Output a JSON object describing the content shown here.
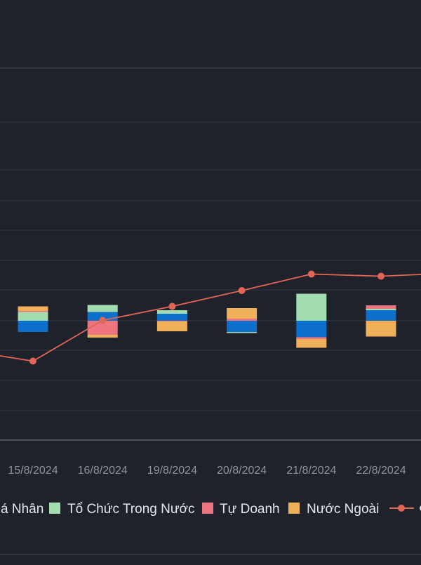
{
  "theme": {
    "background": "#1f222a",
    "gridline": "#2d313b",
    "axis": "#5c606a",
    "tick_text": "#8f939b",
    "legend_text": "#e4e6ea"
  },
  "chart_data": {
    "type": "bar",
    "stacked": true,
    "categories": [
      "15/8/2024",
      "16/8/2024",
      "19/8/2024",
      "20/8/2024",
      "21/8/2024",
      "22/8/2024"
    ],
    "series": [
      {
        "name": "Cá Nhân",
        "color": "#0b6fcb",
        "values": [
          -32,
          25,
          20,
          -32,
          -47,
          30
        ]
      },
      {
        "name": "Tổ Chức Trong Nước",
        "color": "#a3dcaf",
        "values": [
          25,
          20,
          10,
          -3,
          77,
          4
        ]
      },
      {
        "name": "Tự Doanh",
        "color": "#ee7480",
        "values": [
          3,
          -40,
          -2,
          6,
          -5,
          10
        ]
      },
      {
        "name": "Nước Ngoài",
        "color": "#f0b05a",
        "values": [
          13,
          -8,
          -28,
          30,
          -25,
          -45
        ]
      },
      {
        "name": "",
        "type": "line",
        "color": "#e36556",
        "values": [
          -115,
          1,
          41,
          86,
          133,
          127
        ]
      }
    ],
    "line_left_edge_value": -100,
    "line_right_edge_value": 132,
    "ylim": [
      -220,
      460
    ],
    "grid": true,
    "legend_position": "bottom",
    "visible_legend_labels": [
      "á Nhân",
      "Tổ Chức Trong Nước",
      "Tự Doanh",
      "Nước Ngoài"
    ]
  }
}
